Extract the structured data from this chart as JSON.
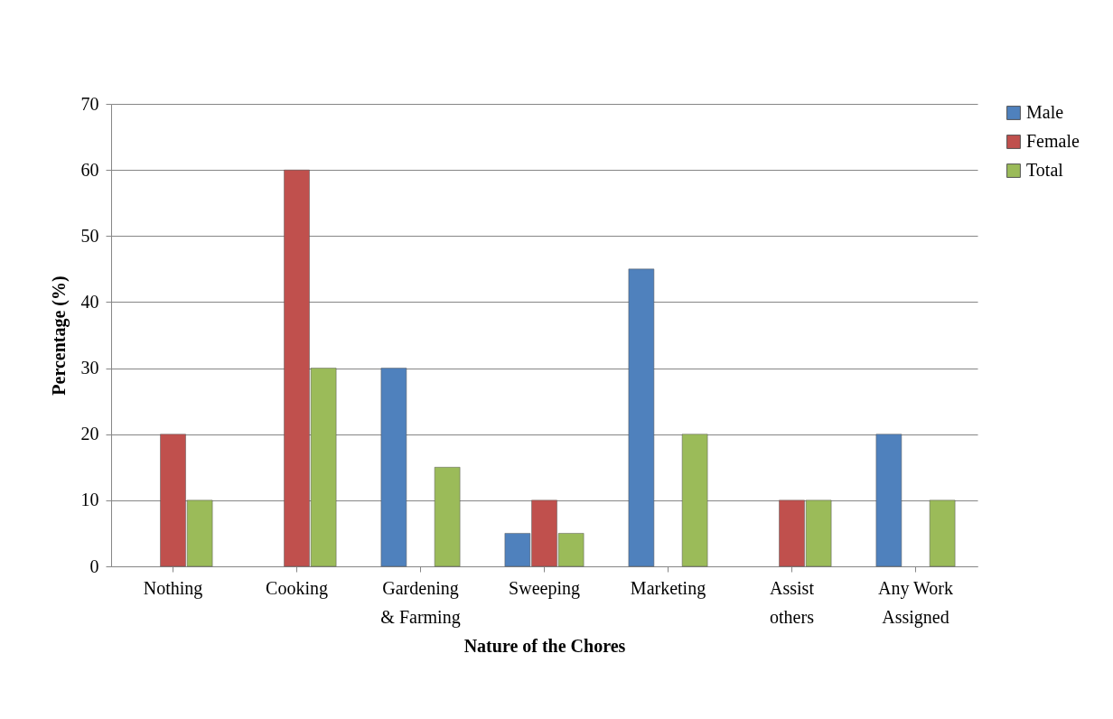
{
  "chart_data": {
    "type": "bar",
    "xlabel": "Nature of the Chores",
    "ylabel": "Percentage (%)",
    "categories": [
      "Nothing",
      "Cooking",
      "Gardening & Farming",
      "Sweeping",
      "Marketing",
      "Assist others",
      "Any Work Assigned"
    ],
    "series": [
      {
        "name": "Male",
        "color": "#4f81bd",
        "values": [
          0,
          0,
          30,
          5,
          45,
          0,
          20
        ]
      },
      {
        "name": "Female",
        "color": "#c0504d",
        "values": [
          20,
          60,
          0,
          10,
          0,
          10,
          0
        ]
      },
      {
        "name": "Total",
        "color": "#9bbb59",
        "values": [
          10,
          30,
          15,
          5,
          20,
          10,
          10
        ]
      }
    ],
    "ylim": [
      0,
      70
    ],
    "yticks": [
      0,
      10,
      20,
      30,
      40,
      50,
      60,
      70
    ],
    "grid": "y",
    "legend": "right"
  }
}
